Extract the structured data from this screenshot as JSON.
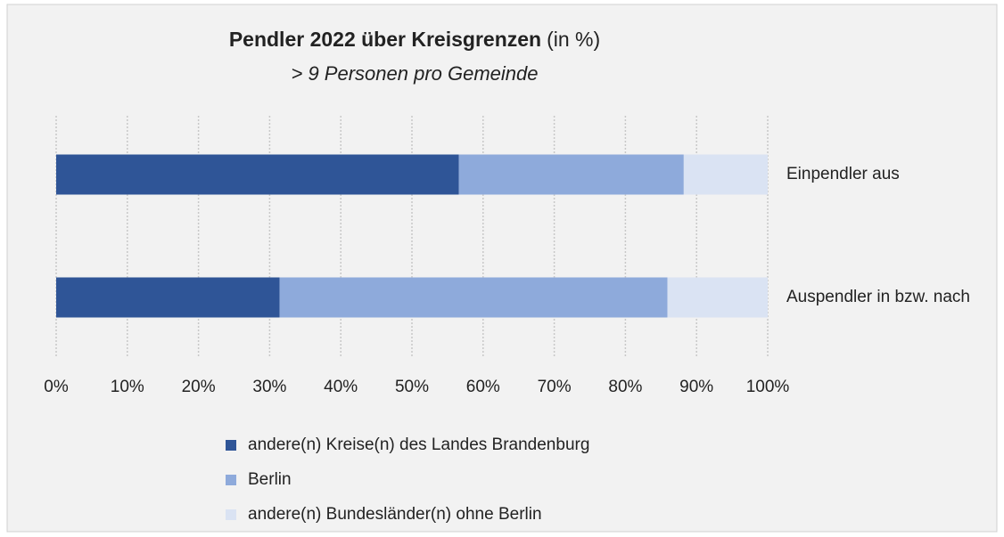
{
  "chart_data": {
    "type": "stacked_bar_horizontal",
    "title": "Pendler 2022 über Kreisgrenzen",
    "title_note": "(in %)",
    "subtitle": "> 9 Personen pro Gemeinde",
    "categories": [
      "Einpendler aus",
      "Auspendler in bzw. nach"
    ],
    "series": [
      {
        "name": "andere(n) Kreise(n) des Landes Brandenburg",
        "color": "#2f5597",
        "values": [
          56.6,
          31.4
        ]
      },
      {
        "name": "Berlin",
        "color": "#8eaadb",
        "values": [
          31.6,
          54.5
        ]
      },
      {
        "name": "andere(n) Bundesländer(n) ohne Berlin",
        "color": "#dae3f3",
        "values": [
          11.8,
          14.1
        ]
      }
    ],
    "xlim": [
      0,
      100
    ],
    "xticks": [
      {
        "value": 0,
        "label": "0%"
      },
      {
        "value": 10,
        "label": "10%"
      },
      {
        "value": 20,
        "label": "20%"
      },
      {
        "value": 30,
        "label": "30%"
      },
      {
        "value": 40,
        "label": "40%"
      },
      {
        "value": 50,
        "label": "50%"
      },
      {
        "value": 60,
        "label": "60%"
      },
      {
        "value": 70,
        "label": "70%"
      },
      {
        "value": 80,
        "label": "80%"
      },
      {
        "value": 90,
        "label": "90%"
      },
      {
        "value": 100,
        "label": "100%"
      }
    ],
    "grid": true,
    "legend": "bottom"
  }
}
